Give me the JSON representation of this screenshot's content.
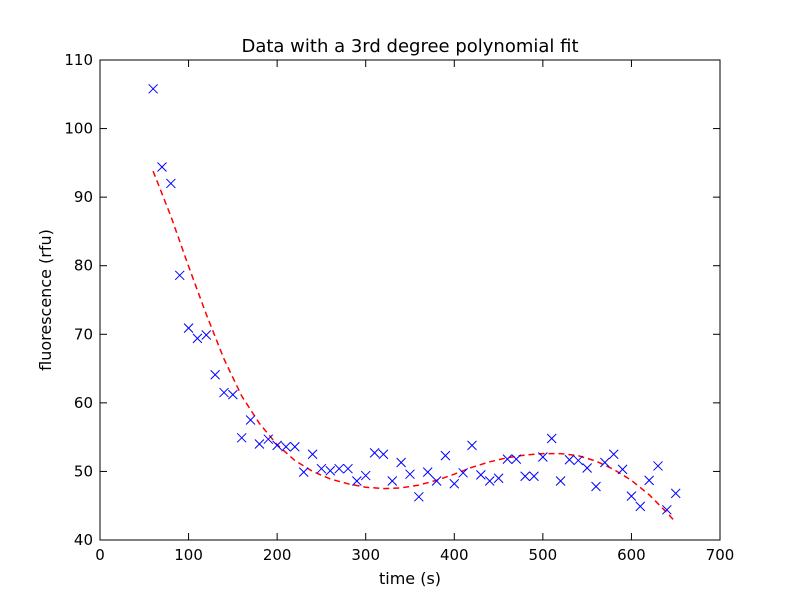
{
  "chart_data": {
    "type": "scatter",
    "title": "Data with a 3rd degree polynomial fit",
    "xlabel": "time (s)",
    "ylabel": "fluorescence (rfu)",
    "xlim": [
      0,
      700
    ],
    "ylim": [
      40,
      110
    ],
    "xticks": [
      0,
      100,
      200,
      300,
      400,
      500,
      600,
      700
    ],
    "yticks": [
      40,
      50,
      60,
      70,
      80,
      90,
      100,
      110
    ],
    "grid": false,
    "colors": {
      "points": "#0000ff",
      "fit": "#ff0000"
    },
    "series": [
      {
        "kind": "points",
        "marker": "x",
        "x": [
          60,
          70,
          80,
          90,
          100,
          110,
          120,
          130,
          140,
          150,
          160,
          170,
          180,
          190,
          200,
          210,
          220,
          230,
          240,
          250,
          260,
          270,
          280,
          290,
          300,
          310,
          320,
          330,
          340,
          350,
          360,
          370,
          380,
          390,
          400,
          410,
          420,
          430,
          440,
          450,
          460,
          470,
          480,
          490,
          500,
          510,
          520,
          530,
          540,
          550,
          560,
          570,
          580,
          590,
          600,
          610,
          620,
          630,
          640,
          650
        ],
        "y": [
          105.8,
          94.4,
          92.0,
          78.6,
          70.9,
          69.4,
          69.9,
          64.1,
          61.5,
          61.2,
          54.9,
          57.5,
          54.0,
          54.7,
          53.8,
          53.6,
          53.6,
          49.9,
          52.5,
          50.4,
          50.1,
          50.4,
          50.4,
          48.6,
          49.4,
          52.7,
          52.5,
          48.6,
          51.3,
          49.6,
          46.3,
          49.9,
          48.6,
          52.3,
          48.2,
          49.8,
          53.8,
          49.5,
          48.6,
          49.0,
          51.8,
          51.8,
          49.3,
          49.3,
          52.1,
          54.8,
          48.6,
          51.7,
          51.6,
          50.5,
          47.8,
          51.3,
          52.5,
          50.3,
          46.4,
          44.9,
          48.7,
          50.8,
          44.4,
          46.8
        ]
      },
      {
        "kind": "fit",
        "line_style": "dashed",
        "x": [
          60,
          80,
          100,
          120,
          140,
          160,
          180,
          200,
          220,
          240,
          260,
          280,
          300,
          320,
          340,
          360,
          380,
          400,
          420,
          440,
          460,
          480,
          500,
          520,
          540,
          560,
          580,
          600,
          620,
          640,
          650
        ],
        "y": [
          93.8,
          87.2,
          79.9,
          72.9,
          66.4,
          61.0,
          57.0,
          53.9,
          51.6,
          50.0,
          48.9,
          48.2,
          47.7,
          47.5,
          47.6,
          48.0,
          48.7,
          49.6,
          50.6,
          51.4,
          52.0,
          52.4,
          52.6,
          52.6,
          52.3,
          51.5,
          50.3,
          48.7,
          46.6,
          44.0,
          42.6
        ]
      }
    ]
  }
}
